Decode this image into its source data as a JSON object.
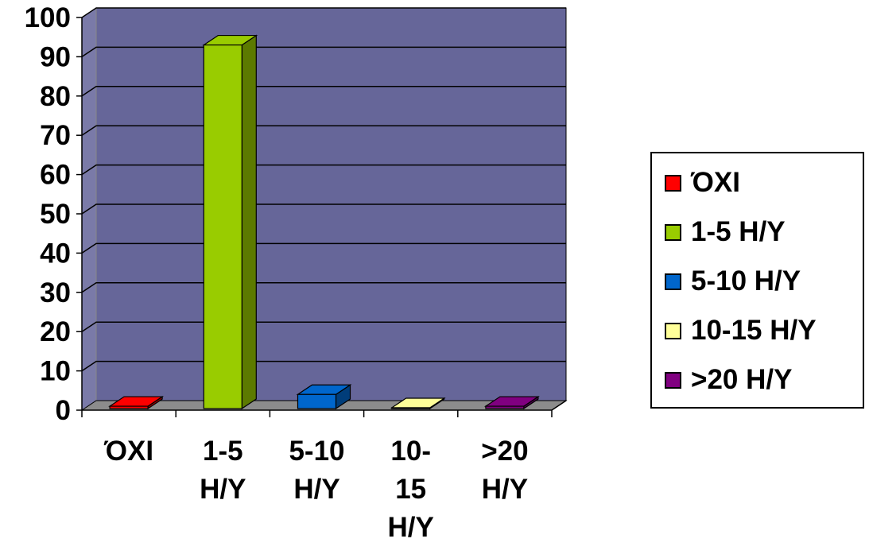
{
  "chart_data": {
    "type": "bar",
    "categories": [
      "ΌΧΙ",
      "1-5 Η/Υ",
      "5-10 Η/Υ",
      "10-15 Η/Υ",
      ">20 Η/Υ"
    ],
    "category_label_lines": [
      [
        "ΌΧΙ"
      ],
      [
        "1-5",
        "Η/Υ"
      ],
      [
        "5-10",
        "Η/Υ"
      ],
      [
        "10-",
        "15",
        "Η/Υ"
      ],
      [
        ">20",
        "Η/Υ"
      ]
    ],
    "values": [
      1,
      93,
      4,
      0,
      1
    ],
    "yticks": [
      "0",
      "10",
      "20",
      "30",
      "40",
      "50",
      "60",
      "70",
      "80",
      "90",
      "100"
    ],
    "ylim": [
      0,
      100
    ],
    "grid": true,
    "three_d": true,
    "colors": {
      "bars": [
        "#ff0000",
        "#99cc00",
        "#0066cc",
        "#ffff99",
        "#800080"
      ],
      "bar_sides": [
        "#990000",
        "#5c7a00",
        "#003d7a",
        "#99995c",
        "#4d004d"
      ],
      "wall": "#666699",
      "wall_side": "#7a7aa8",
      "floor": "#8c8c8c"
    },
    "legend": {
      "position": "right",
      "entries": [
        "ΌΧΙ",
        "1-5 Η/Υ",
        "5-10 Η/Υ",
        "10-15 Η/Υ",
        ">20 Η/Υ"
      ]
    }
  }
}
